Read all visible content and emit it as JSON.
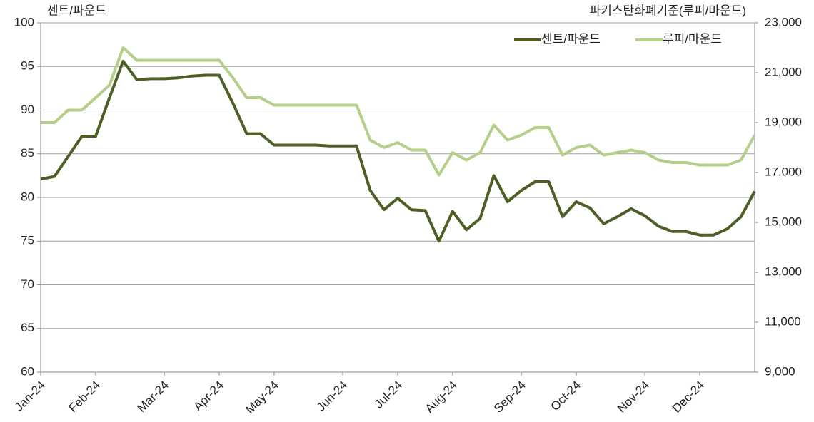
{
  "chart_data": {
    "type": "line",
    "y_axis_title": "센트/파운드",
    "y2_axis_title": "파키스탄화폐기준(루피/마운드)",
    "categories": [
      "Jan-24",
      null,
      null,
      null,
      "Feb-24",
      null,
      null,
      null,
      null,
      "Mar-24",
      null,
      null,
      null,
      "Apr-24",
      null,
      null,
      null,
      "May-24",
      null,
      null,
      null,
      null,
      "Jun-24",
      null,
      null,
      null,
      "Jul-24",
      null,
      null,
      null,
      "Aug-24",
      null,
      null,
      null,
      null,
      "Sep-24",
      null,
      null,
      null,
      "Oct-24",
      null,
      null,
      null,
      null,
      "Nov-24",
      null,
      null,
      null,
      "Dec-24",
      null,
      null,
      null,
      null
    ],
    "series": [
      {
        "name": "센트/파운드",
        "color": "#4e5f26",
        "axis": "y",
        "values": [
          82.1,
          82.4,
          84.7,
          87.0,
          87.0,
          91.4,
          95.6,
          93.5,
          93.6,
          93.6,
          93.7,
          93.9,
          94.0,
          94.0,
          90.8,
          87.3,
          87.3,
          86.0,
          86.0,
          86.0,
          86.0,
          85.9,
          85.9,
          85.9,
          80.8,
          78.6,
          79.9,
          78.6,
          78.5,
          75.0,
          78.4,
          76.3,
          77.6,
          82.5,
          79.5,
          80.8,
          81.8,
          81.8,
          77.8,
          79.5,
          78.8,
          77.0,
          77.8,
          78.7,
          77.9,
          76.7,
          76.1,
          76.1,
          75.7,
          75.7,
          76.4,
          77.8,
          80.7
        ]
      },
      {
        "name": "루피/마운드",
        "color": "#b5cf8a",
        "axis": "y2",
        "values": [
          19000,
          19000,
          19500,
          19500,
          20000,
          20500,
          22000,
          21500,
          21500,
          21500,
          21500,
          21500,
          21500,
          21500,
          20800,
          20000,
          20000,
          19700,
          19700,
          19700,
          19700,
          19700,
          19700,
          19700,
          18300,
          18000,
          18200,
          17900,
          17900,
          16900,
          17800,
          17500,
          17800,
          18900,
          18300,
          18500,
          18800,
          18800,
          17700,
          18000,
          18100,
          17700,
          17800,
          17900,
          17800,
          17500,
          17400,
          17400,
          17300,
          17300,
          17300,
          17500,
          18500
        ]
      }
    ],
    "ylim": [
      60,
      100
    ],
    "yticks": [
      60,
      65,
      70,
      75,
      80,
      85,
      90,
      95,
      100
    ],
    "y2lim": [
      9000,
      23000
    ],
    "y2ticks": [
      {
        "value": 9000,
        "label": "9,000"
      },
      {
        "value": 11000,
        "label": "11,000"
      },
      {
        "value": 13000,
        "label": "13,000"
      },
      {
        "value": 15000,
        "label": "15,000"
      },
      {
        "value": 17000,
        "label": "17,000"
      },
      {
        "value": 19000,
        "label": "19,000"
      },
      {
        "value": 21000,
        "label": "21,000"
      },
      {
        "value": 23000,
        "label": "23,000"
      }
    ],
    "grid": true,
    "legend": "top-right"
  }
}
